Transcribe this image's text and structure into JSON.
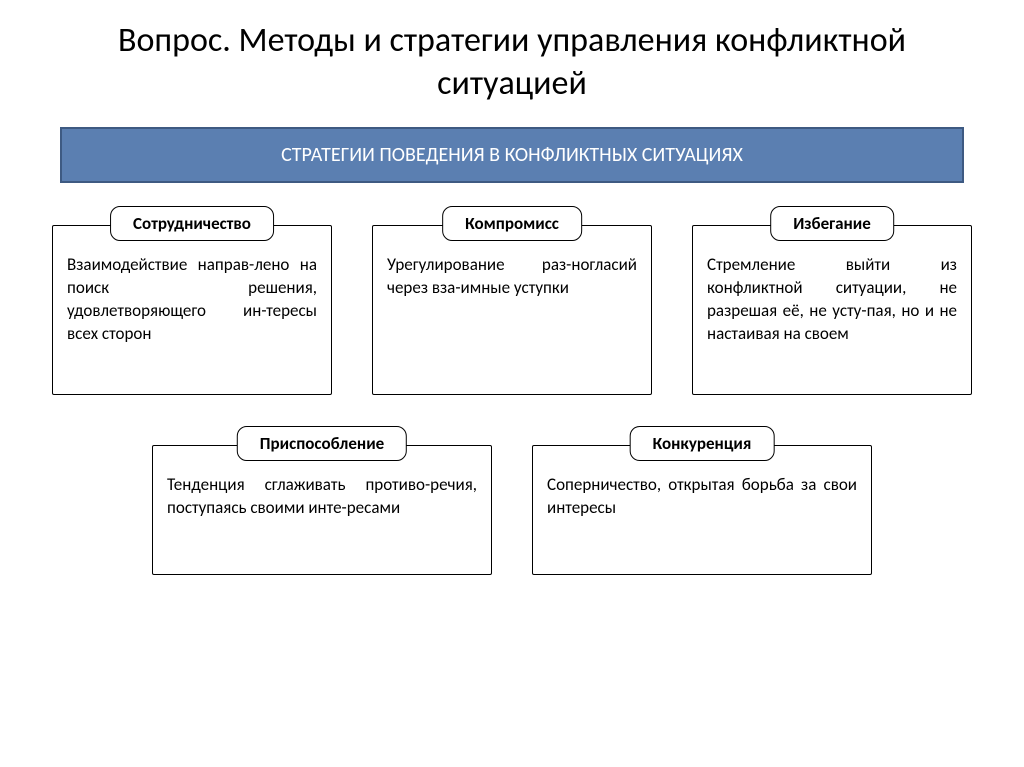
{
  "title": "Вопрос. Методы и стратегии управления конфликтной ситуацией",
  "banner": "СТРАТЕГИИ ПОВЕДЕНИЯ В КОНФЛИКТНЫХ СИТУАЦИЯХ",
  "colors": {
    "banner_bg": "#5b7fb1",
    "banner_border": "#3e5a82",
    "banner_text": "#ffffff",
    "page_bg": "#ffffff",
    "text": "#000000",
    "card_border": "#000000"
  },
  "typography": {
    "title_fontsize": 34,
    "banner_fontsize": 20,
    "label_fontsize": 17,
    "body_fontsize": 17
  },
  "layout": {
    "type": "infographic",
    "rows": [
      3,
      2
    ],
    "card_label_radius": 10
  },
  "cards_row1": [
    {
      "label": "Сотрудничество",
      "body": "Взаимодействие направ-лено на поиск решения, удовлетворяющего ин-тересы всех сторон"
    },
    {
      "label": "Компромисс",
      "body": "Урегулирование раз-ногласий через вза-имные уступки"
    },
    {
      "label": "Избегание",
      "body": "Стремление выйти из конфликтной ситуации, не разрешая её, не усту-пая, но и не настаивая на своем"
    }
  ],
  "cards_row2": [
    {
      "label": "Приспособление",
      "body": "Тенденция сглаживать противо-речия, поступаясь своими инте-ресами"
    },
    {
      "label": "Конкуренция",
      "body": "Соперничество, открытая борьба за свои интересы"
    }
  ]
}
